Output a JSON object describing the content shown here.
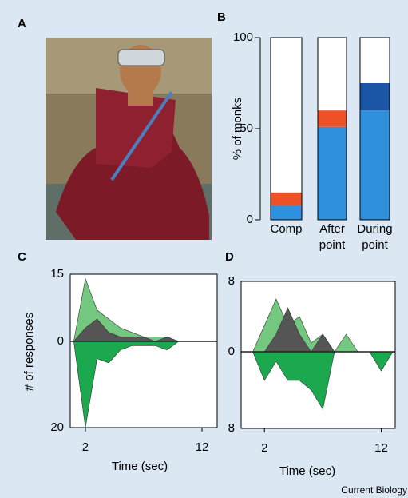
{
  "panel_a": {
    "label": "A"
  },
  "credit": "Current Biology",
  "chart_data": [
    {
      "type": "stacked_bar",
      "label": "B",
      "y_label": "% of monks",
      "categories": [
        "Comp",
        "After point",
        "During point"
      ],
      "series": [
        {
          "color": "#2f90de",
          "values": [
            8,
            51,
            60
          ]
        },
        {
          "color": "#ef5127",
          "values": [
            7,
            9,
            null
          ]
        },
        {
          "color": "#1b55a6",
          "values": [
            null,
            null,
            15
          ]
        }
      ],
      "ylim": [
        0,
        100
      ],
      "yticks": [
        0,
        50,
        100
      ],
      "bar_background": "#ffffff"
    },
    {
      "type": "mirrored_area",
      "label": "C",
      "y_label": "# of responses",
      "x_label": "Time (sec)",
      "x": [
        1,
        2,
        3,
        4,
        5,
        6,
        7,
        8,
        9,
        10,
        11,
        12,
        13
      ],
      "xlim": [
        0.7,
        13.3
      ],
      "xticks": [
        2,
        12
      ],
      "ylim": [
        0,
        15
      ],
      "yticks": [
        0,
        15
      ],
      "y2lim": [
        0,
        20
      ],
      "y2ticks": [
        20
      ],
      "series": [
        {
          "color": "#74c77e",
          "values": [
            0,
            14,
            7,
            5,
            3,
            2,
            1,
            1,
            1,
            0,
            0,
            0,
            0
          ]
        },
        {
          "color": "#555555",
          "values": [
            0,
            3,
            5,
            2,
            1,
            1,
            1,
            0,
            1,
            0,
            0,
            0,
            0
          ]
        },
        {
          "color": "#1ca84e",
          "axis": "y2",
          "values": [
            0,
            20,
            4,
            5,
            2,
            1,
            1,
            1,
            2,
            0,
            0,
            0,
            0
          ]
        }
      ]
    },
    {
      "type": "mirrored_area",
      "label": "D",
      "x_label": "Time (sec)",
      "x": [
        1,
        2,
        3,
        4,
        5,
        6,
        7,
        8,
        9,
        10,
        11,
        12,
        13
      ],
      "xlim": [
        0,
        13.2
      ],
      "xticks": [
        2,
        12
      ],
      "ylim": [
        0,
        8
      ],
      "yticks": [
        0,
        8
      ],
      "y2lim": [
        0,
        8
      ],
      "y2ticks": [
        8
      ],
      "series": [
        {
          "color": "#74c77e",
          "values": [
            0,
            3,
            6,
            3,
            4,
            1,
            2,
            0,
            2,
            0,
            0,
            0,
            0
          ]
        },
        {
          "color": "#555555",
          "values": [
            0,
            0,
            2,
            5,
            2,
            0,
            2,
            0,
            0,
            0,
            0,
            0,
            0
          ]
        },
        {
          "color": "#1ca84e",
          "axis": "y2",
          "values": [
            0,
            3,
            1,
            3,
            3,
            4,
            6,
            0,
            0,
            0,
            0,
            2,
            0
          ]
        }
      ]
    }
  ]
}
